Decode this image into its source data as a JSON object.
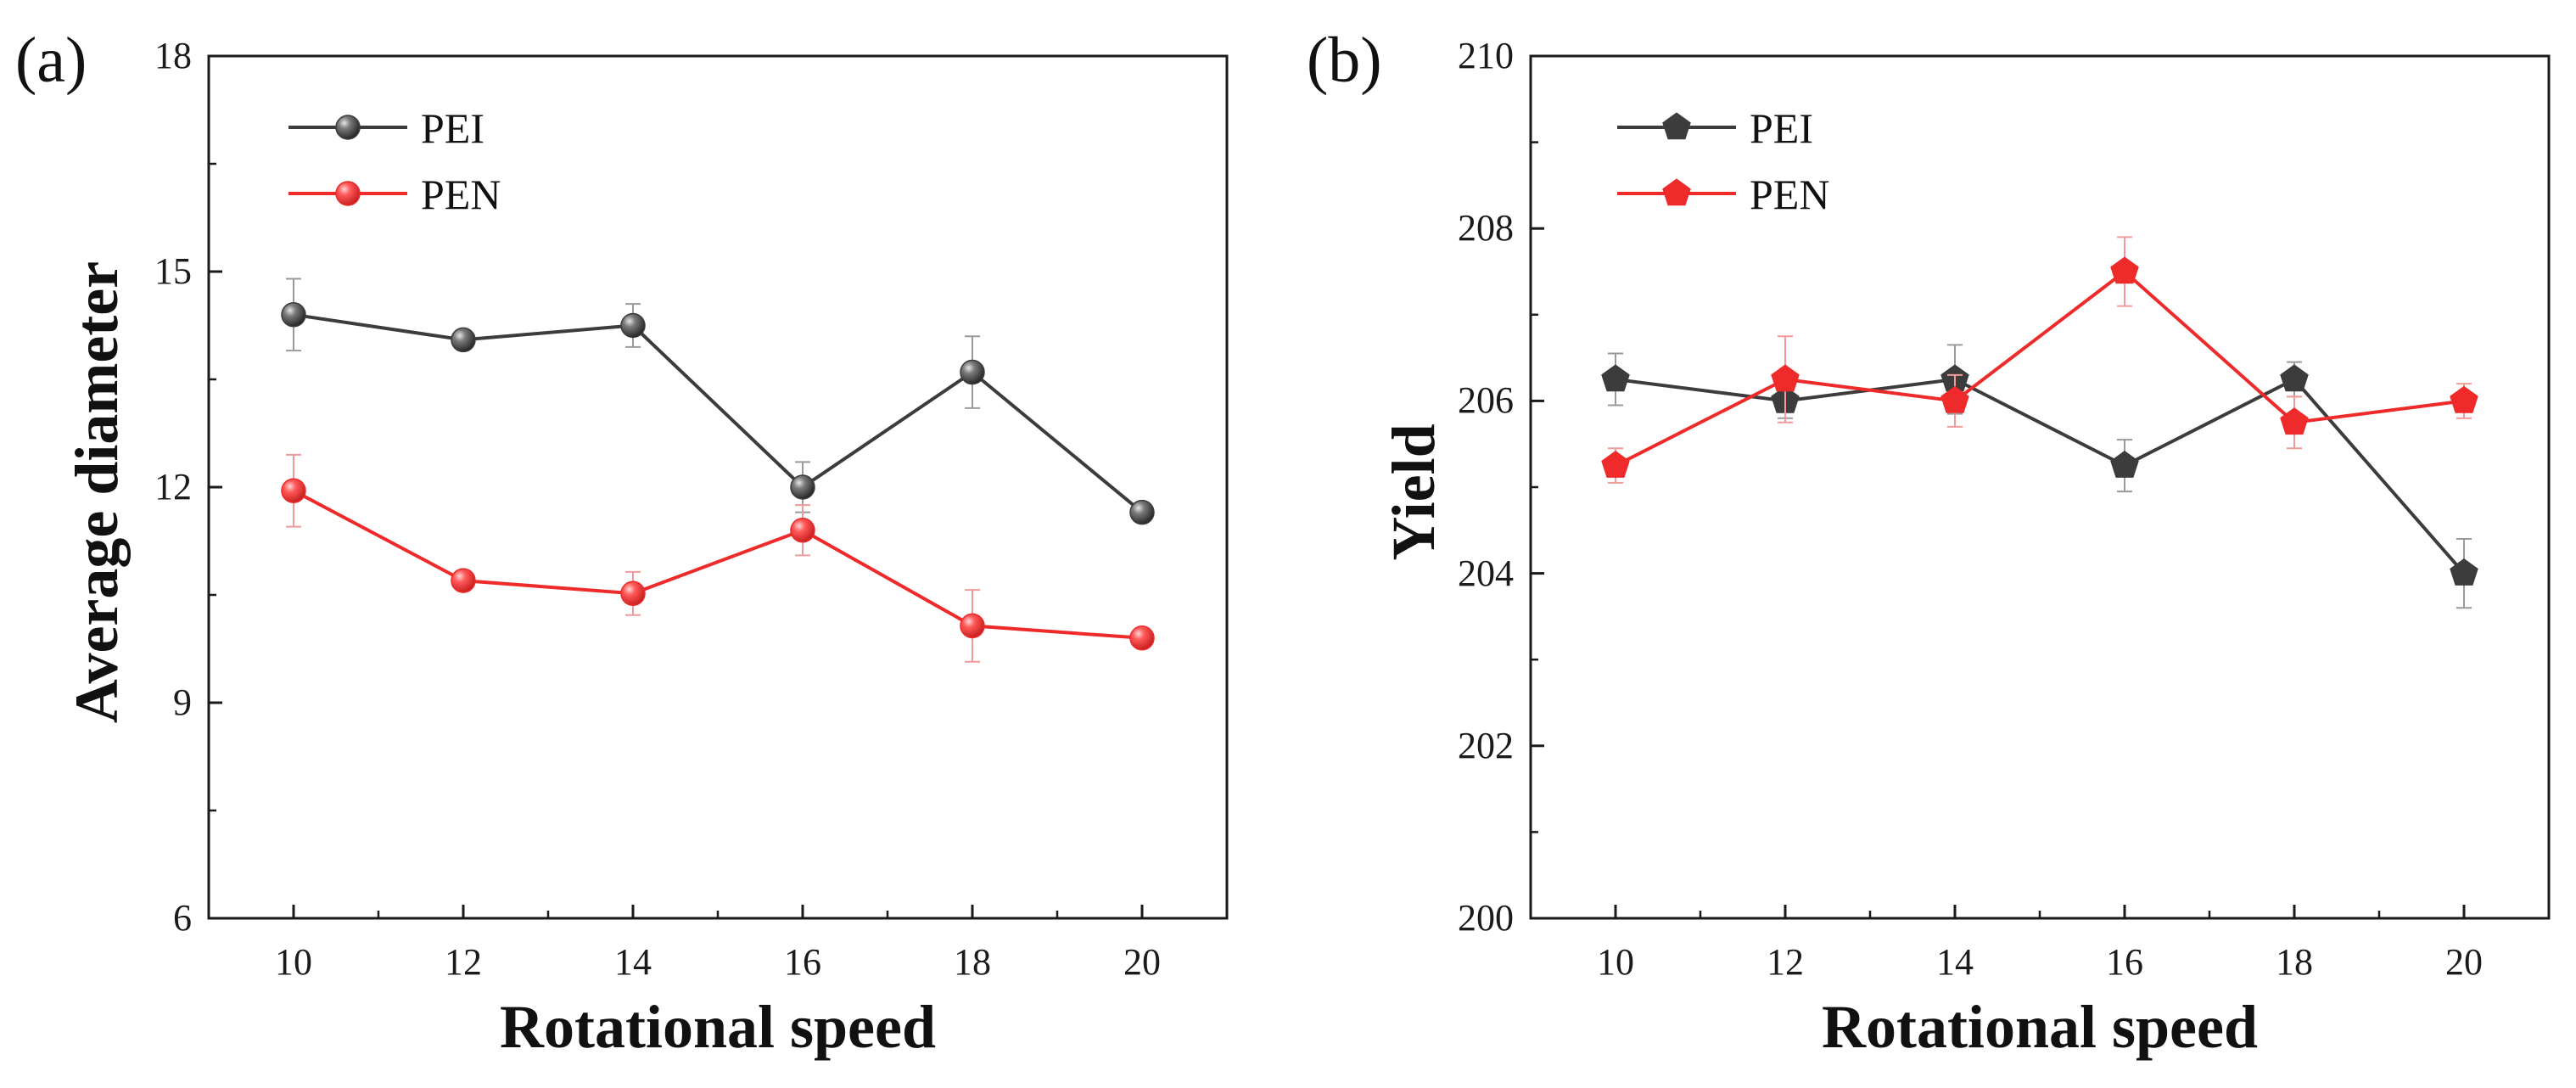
{
  "chart_data": [
    {
      "panel_label": "(a)",
      "type": "line",
      "marker": "sphere",
      "xlabel": "Rotational speed",
      "ylabel": "Average diameter",
      "x": [
        10,
        12,
        14,
        16,
        18,
        20
      ],
      "x_ticks": [
        "10",
        "12",
        "14",
        "16",
        "18",
        "20"
      ],
      "xlim": [
        9,
        21
      ],
      "ylim": [
        6,
        18
      ],
      "y_ticks": [
        "6",
        "9",
        "12",
        "15",
        "18"
      ],
      "y_tick_values": [
        6,
        9,
        12,
        15,
        18
      ],
      "grid": false,
      "legend_position": "top-left",
      "series": [
        {
          "name": "PEI",
          "color": "#3c3c3c",
          "errcolor": "#9a9a9a",
          "values": [
            14.4,
            14.05,
            14.25,
            12.0,
            13.6,
            11.65
          ],
          "errors": [
            0.5,
            0.1,
            0.3,
            0.35,
            0.5,
            0.1
          ]
        },
        {
          "name": "PEN",
          "color": "#ee2a2a",
          "errcolor": "#f09a9a",
          "values": [
            11.95,
            10.7,
            10.52,
            11.4,
            10.07,
            9.9
          ],
          "errors": [
            0.5,
            0.1,
            0.3,
            0.35,
            0.5,
            0.1
          ]
        }
      ]
    },
    {
      "panel_label": "(b)",
      "type": "line",
      "marker": "pentagon",
      "xlabel": "Rotational speed",
      "ylabel": "Yield",
      "x": [
        10,
        12,
        14,
        16,
        18,
        20
      ],
      "x_ticks": [
        "10",
        "12",
        "14",
        "16",
        "18",
        "20"
      ],
      "xlim": [
        9,
        21
      ],
      "ylim": [
        200,
        210
      ],
      "y_ticks": [
        "200",
        "202",
        "204",
        "206",
        "208",
        "210"
      ],
      "y_tick_values": [
        200,
        202,
        204,
        206,
        208,
        210
      ],
      "grid": false,
      "legend_position": "top-left",
      "series": [
        {
          "name": "PEI",
          "color": "#3c3c3c",
          "errcolor": "#9a9a9a",
          "values": [
            206.25,
            206.0,
            206.25,
            205.25,
            206.25,
            204.0
          ],
          "errors": [
            0.3,
            0.2,
            0.4,
            0.3,
            0.2,
            0.4
          ]
        },
        {
          "name": "PEN",
          "color": "#ee2a2a",
          "errcolor": "#f09a9a",
          "values": [
            205.25,
            206.25,
            206.0,
            207.5,
            205.75,
            206.0
          ],
          "errors": [
            0.2,
            0.5,
            0.3,
            0.4,
            0.3,
            0.2
          ]
        }
      ]
    }
  ]
}
